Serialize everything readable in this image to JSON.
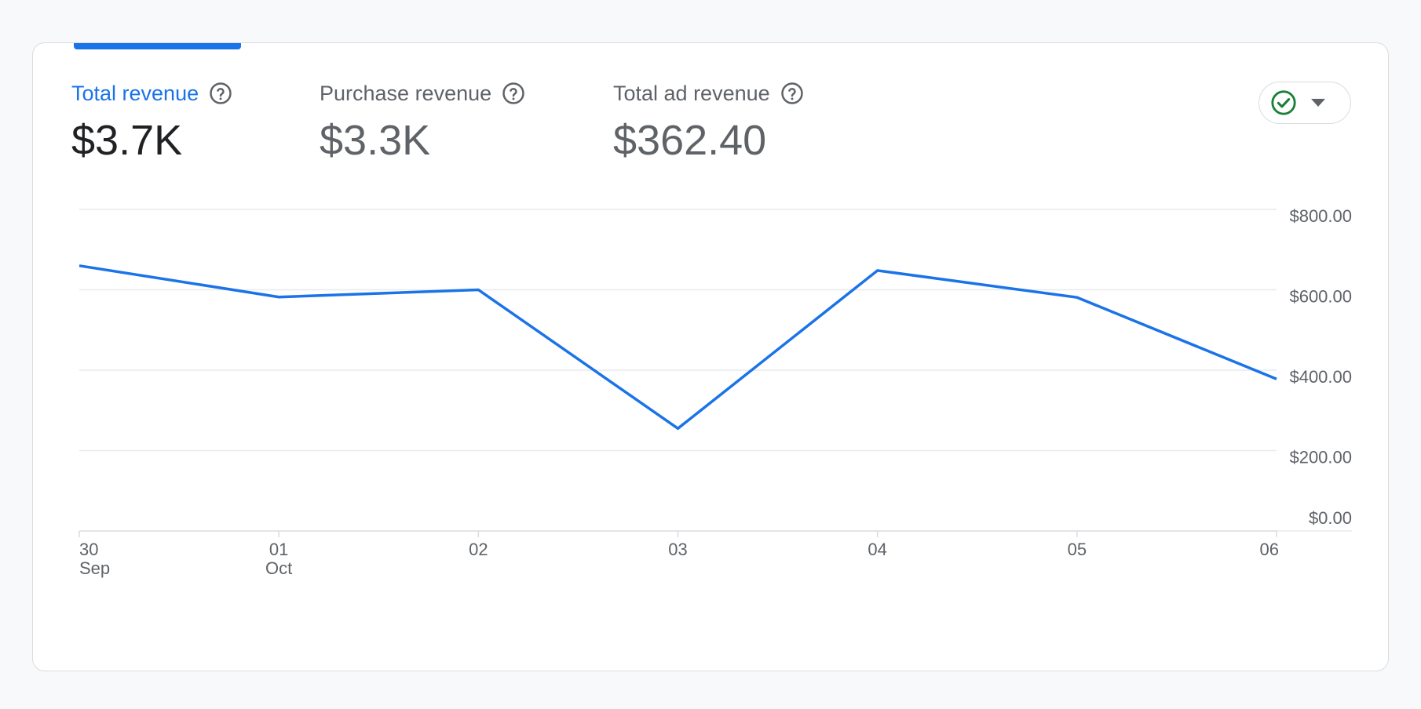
{
  "metrics": [
    {
      "label": "Total revenue",
      "value": "$3.7K",
      "active": true
    },
    {
      "label": "Purchase revenue",
      "value": "$3.3K",
      "active": false
    },
    {
      "label": "Total ad revenue",
      "value": "$362.40",
      "active": false
    }
  ],
  "colors": {
    "accent": "#1a73e8",
    "line": "#1a73e8",
    "check": "#188038",
    "muted_text": "#5f6368",
    "grid": "#e8eaed"
  },
  "compare_button": {
    "icon": "check-circle-icon",
    "caret": "caret-down-icon"
  },
  "chart_data": {
    "type": "line",
    "x": [
      {
        "top": "30",
        "bottom": "Sep"
      },
      {
        "top": "01",
        "bottom": "Oct"
      },
      {
        "top": "02",
        "bottom": ""
      },
      {
        "top": "03",
        "bottom": ""
      },
      {
        "top": "04",
        "bottom": ""
      },
      {
        "top": "05",
        "bottom": ""
      },
      {
        "top": "06",
        "bottom": ""
      }
    ],
    "series": [
      {
        "values": [
          660,
          582,
          600,
          255,
          648,
          581,
          378
        ]
      }
    ],
    "ylim": [
      0,
      800
    ],
    "yticks": [
      {
        "value": 800,
        "label": "$800.00"
      },
      {
        "value": 600,
        "label": "$600.00"
      },
      {
        "value": 400,
        "label": "$400.00"
      },
      {
        "value": 200,
        "label": "$200.00"
      },
      {
        "value": 0,
        "label": "$0.00"
      }
    ],
    "grid": true,
    "yaxis_position": "right"
  }
}
